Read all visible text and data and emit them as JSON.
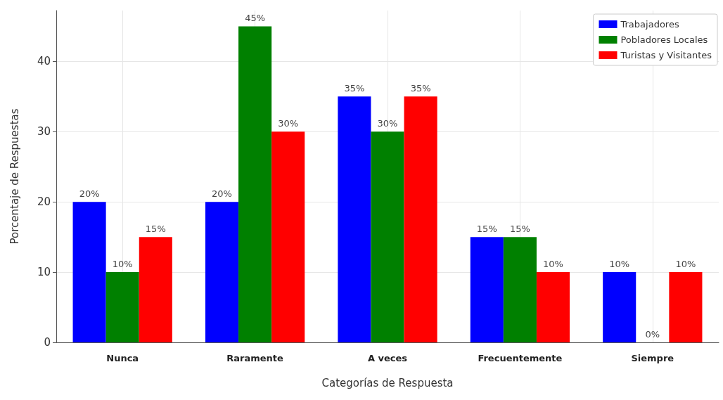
{
  "chart_data": {
    "type": "bar",
    "xlabel": "Categorías de Respuesta",
    "ylabel": "Porcentaje de Respuestas",
    "categories": [
      "Nunca",
      "Raramente",
      "A veces",
      "Frecuentemente",
      "Siempre"
    ],
    "series": [
      {
        "name": "Trabajadores",
        "color": "#0000ff",
        "values": [
          20,
          20,
          35,
          15,
          10
        ],
        "value_labels": [
          "20%",
          "20%",
          "35%",
          "15%",
          "10%"
        ]
      },
      {
        "name": "Pobladores Locales",
        "color": "#008000",
        "values": [
          10,
          45,
          30,
          15,
          0
        ],
        "value_labels": [
          "10%",
          "45%",
          "30%",
          "15%",
          "0%"
        ]
      },
      {
        "name": "Turistas y Visitantes",
        "color": "#ff0000",
        "values": [
          15,
          30,
          35,
          10,
          10
        ],
        "value_labels": [
          "15%",
          "30%",
          "35%",
          "10%",
          "10%"
        ]
      }
    ],
    "ylim": [
      0,
      47.25
    ],
    "yticks": [
      0,
      10,
      20,
      30,
      40
    ],
    "grid": true,
    "legend": "top right"
  }
}
